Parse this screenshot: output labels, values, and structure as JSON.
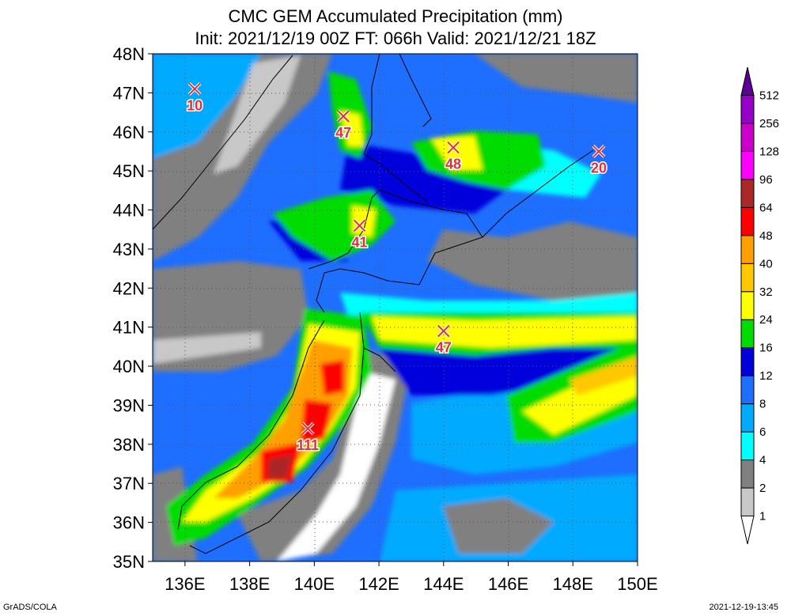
{
  "title": {
    "line1": "CMC GEM Accumulated Precipitation (mm)",
    "line2": "Init: 2021/12/19 00Z  FT: 066h  Valid: 2021/12/21 18Z"
  },
  "map": {
    "region": "Northern Japan / Hokkaido / Sakhalin / Kuril Islands",
    "lon_range": [
      135,
      150
    ],
    "lat_range": [
      35,
      48
    ],
    "lon_ticks": [
      "136E",
      "138E",
      "140E",
      "142E",
      "144E",
      "146E",
      "148E",
      "150E"
    ],
    "lat_ticks": [
      "35N",
      "36N",
      "37N",
      "38N",
      "39N",
      "40N",
      "41N",
      "42N",
      "43N",
      "44N",
      "45N",
      "46N",
      "47N",
      "48N"
    ],
    "grid": "dotted"
  },
  "markers": [
    {
      "label": "10",
      "lon": 136.3,
      "lat": 47.1
    },
    {
      "label": "47",
      "lon": 140.9,
      "lat": 46.4
    },
    {
      "label": "48",
      "lon": 144.3,
      "lat": 45.6
    },
    {
      "label": "20",
      "lon": 148.8,
      "lat": 45.5
    },
    {
      "label": "41",
      "lon": 141.4,
      "lat": 43.6
    },
    {
      "label": "47",
      "lon": 144.0,
      "lat": 40.9
    },
    {
      "label": "111",
      "lon": 139.8,
      "lat": 38.4
    }
  ],
  "colorbar": {
    "labels": [
      "1",
      "2",
      "4",
      "6",
      "8",
      "12",
      "16",
      "24",
      "32",
      "40",
      "48",
      "64",
      "96",
      "128",
      "256",
      "512"
    ],
    "colors": [
      "#ffffff",
      "#c8c8c8",
      "#808080",
      "#00ffff",
      "#00aaff",
      "#1e6eff",
      "#0000dc",
      "#00dc00",
      "#ffff00",
      "#ffc800",
      "#ffa000",
      "#ff0000",
      "#aa2828",
      "#ff00ff",
      "#cc00cc",
      "#9600c8",
      "#5a0096"
    ]
  },
  "footer": {
    "left": "GrADS/COLA",
    "right": "2021-12-19-13:45"
  }
}
